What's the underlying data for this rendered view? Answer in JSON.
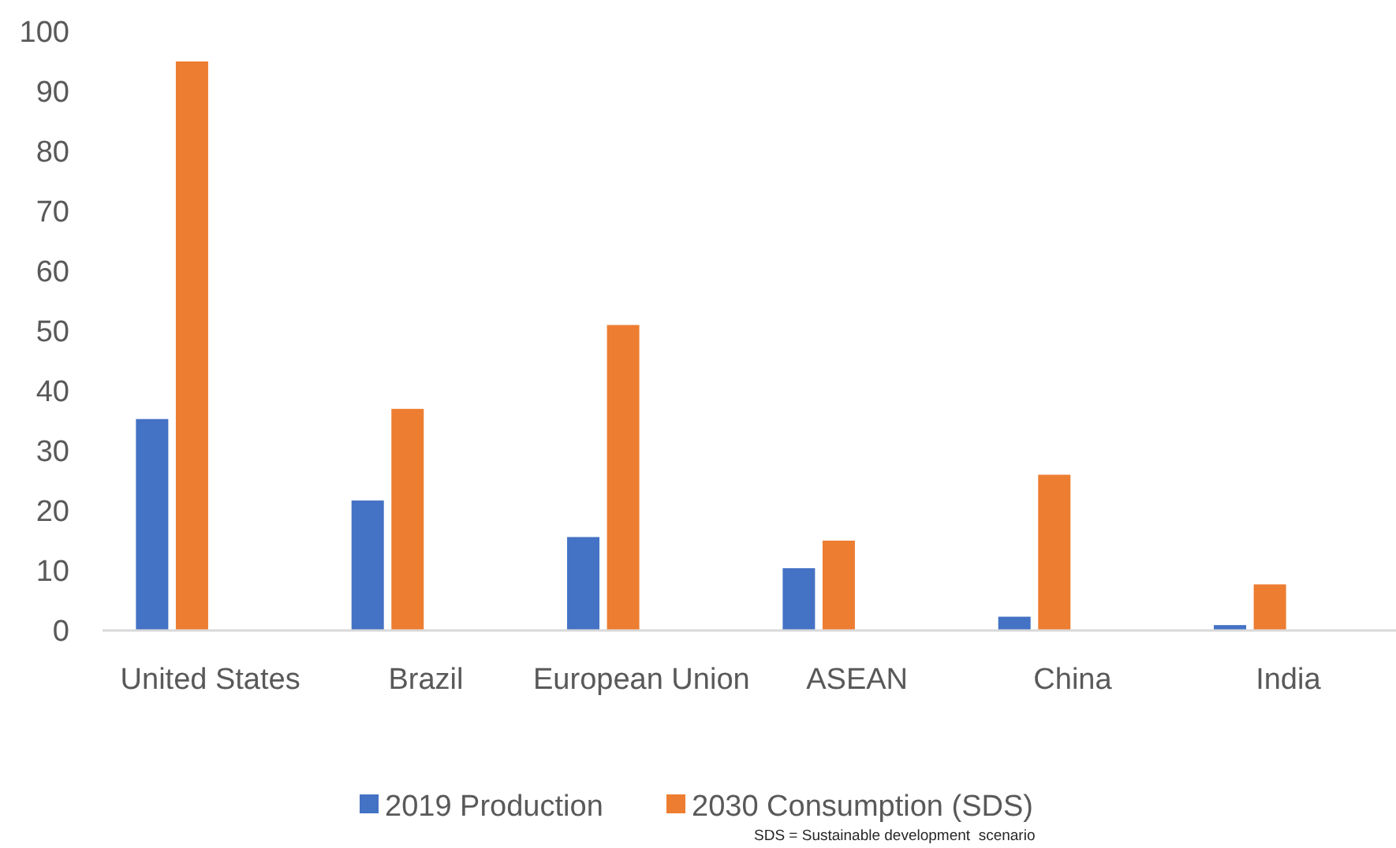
{
  "chart_data": {
    "type": "bar",
    "categories": [
      "United States",
      "Brazil",
      "European Union",
      "ASEAN",
      "China",
      "India"
    ],
    "series": [
      {
        "name": "2019 Production",
        "color": "#4472c4",
        "values": [
          35.3,
          21.7,
          15.6,
          10.4,
          2.3,
          0.9
        ]
      },
      {
        "name": "2030 Consumption (SDS)",
        "color": "#ed7d31",
        "values": [
          95,
          37,
          51,
          15,
          26,
          7.7
        ]
      }
    ],
    "ylim": [
      0,
      100
    ],
    "yticks": [
      0,
      10,
      20,
      30,
      40,
      50,
      60,
      70,
      80,
      90,
      100
    ],
    "grid": false,
    "legend": "bottom",
    "annotations": [
      "SDS = Sustainable development  scenario"
    ]
  }
}
